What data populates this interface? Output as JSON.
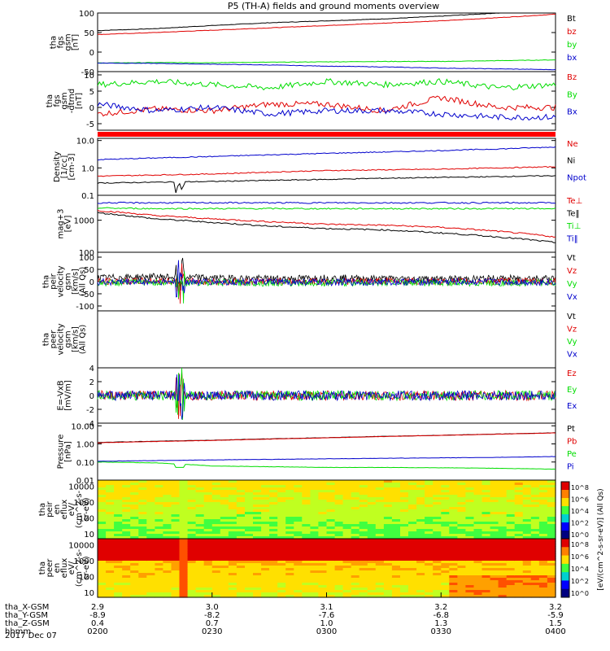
{
  "title": "P5 (TH-A) fields and ground moments overview",
  "date": "2017 Dec 07",
  "colors": {
    "black": "#000000",
    "red": "#e00000",
    "green": "#00dd00",
    "blue": "#0000cc"
  },
  "x_axis": {
    "rows": [
      {
        "label": "tha_X-GSM",
        "values": [
          "2.9",
          "3.0",
          "3.1",
          "3.2",
          "3.2"
        ]
      },
      {
        "label": "tha_Y-GSM",
        "values": [
          "-8.9",
          "-8.2",
          "-7.6",
          "-6.8",
          "-5.9"
        ]
      },
      {
        "label": "tha_Z-GSM",
        "values": [
          "0.4",
          "0.7",
          "1.0",
          "1.3",
          "1.5"
        ]
      },
      {
        "label": "hhmm",
        "values": [
          "0200",
          "0230",
          "0300",
          "0330",
          "0400"
        ]
      }
    ]
  },
  "colorbar": {
    "label": "[eV/(cm^2-s-sr-eV)] (All Qs)",
    "ticks_top": [
      "10^8",
      "10^6",
      "10^4",
      "10^2",
      "10^0"
    ],
    "ticks_bottom": [
      "10^8",
      "10^6",
      "10^4",
      "10^2",
      "10^0"
    ]
  },
  "panels": [
    {
      "id": "fgs",
      "ylabel": [
        "tha",
        "fgs",
        "gsm",
        "[nT]"
      ],
      "type": "line",
      "ylim": [
        -50,
        100
      ],
      "log": false,
      "ticks": [
        "100",
        "50",
        "0",
        "-50"
      ],
      "series": [
        {
          "name": "Bt",
          "color": "black",
          "values": [
            55,
            60,
            68,
            75,
            80,
            85,
            92,
            100,
            104
          ]
        },
        {
          "name": "bz",
          "color": "red",
          "values": [
            45,
            50,
            56,
            62,
            68,
            74,
            80,
            88,
            97
          ]
        },
        {
          "name": "by",
          "color": "green",
          "values": [
            -28,
            -27,
            -27,
            -26,
            -25,
            -24,
            -24,
            -22,
            -20
          ]
        },
        {
          "name": "bx",
          "color": "blue",
          "values": [
            -28,
            -29,
            -31,
            -33,
            -36,
            -38,
            -41,
            -43,
            -45
          ]
        }
      ]
    },
    {
      "id": "fgs-dtrnd",
      "ylabel": [
        "tha",
        "fgs",
        "gsm",
        "-dtrnd",
        "[nT]"
      ],
      "type": "line",
      "ylim": [
        -7,
        11
      ],
      "log": false,
      "ticks": [
        "10",
        "5",
        "0",
        "-5"
      ],
      "series": [
        {
          "name": "Bz",
          "color": "red",
          "values": [
            -2,
            -0.5,
            -1,
            1,
            1,
            -1,
            3,
            0,
            0
          ]
        },
        {
          "name": "By",
          "color": "green",
          "values": [
            7,
            8,
            7,
            6,
            8,
            7,
            8,
            6,
            7
          ]
        },
        {
          "name": "Bx",
          "color": "blue",
          "values": [
            1,
            -1,
            0,
            -2,
            -1,
            -1,
            -2,
            -3,
            -3
          ]
        }
      ]
    },
    {
      "id": "density",
      "ylabel": [
        "Density",
        "[1/cc]",
        "[cm-3]"
      ],
      "type": "line",
      "ylim": [
        0.1,
        12
      ],
      "log": true,
      "ticks": [
        "10.0",
        "1.0",
        "0.1"
      ],
      "series": [
        {
          "name": "Ne",
          "color": "red",
          "values": [
            0.5,
            0.55,
            0.6,
            0.7,
            0.8,
            0.85,
            0.9,
            1.0,
            1.1
          ]
        },
        {
          "name": "Ni",
          "color": "black",
          "values": [
            0.28,
            0.3,
            0.32,
            0.35,
            0.38,
            0.42,
            0.45,
            0.48,
            0.52
          ]
        },
        {
          "name": "Npot",
          "color": "blue",
          "values": [
            2,
            2.3,
            2.6,
            3,
            3.4,
            3.8,
            4.3,
            4.9,
            5.8
          ]
        }
      ]
    },
    {
      "id": "temp",
      "ylabel": [
        "mag+3",
        "[eV]"
      ],
      "type": "line",
      "ylim": [
        100,
        6000
      ],
      "log": true,
      "ticks": [
        "1000",
        "100"
      ],
      "series": [
        {
          "name": "Te⊥",
          "color": "red",
          "values": [
            2000,
            1400,
            1100,
            900,
            750,
            700,
            600,
            450,
            300
          ]
        },
        {
          "name": "Te‖",
          "color": "black",
          "values": [
            1700,
            1100,
            850,
            650,
            550,
            500,
            400,
            300,
            200
          ]
        },
        {
          "name": "Ti⊥",
          "color": "green",
          "values": [
            2400,
            2300,
            2300,
            2300,
            2300,
            2300,
            2300,
            2300,
            2300
          ]
        },
        {
          "name": "Ti‖",
          "color": "blue",
          "values": [
            3500,
            3500,
            3500,
            3500,
            3500,
            3500,
            3500,
            3500,
            3500
          ]
        }
      ]
    },
    {
      "id": "peir-vel",
      "ylabel": [
        "tha",
        "peir",
        "velocity",
        "gsm",
        "[km/s]",
        "(All Qs)"
      ],
      "type": "line",
      "ylim": [
        -120,
        120
      ],
      "log": false,
      "ticks": [
        "100",
        "50",
        "0",
        "-50",
        "-100"
      ],
      "series": [
        {
          "name": "Vt",
          "color": "black",
          "values": [
            15,
            20,
            15,
            12,
            15,
            12,
            10,
            12,
            15
          ]
        },
        {
          "name": "Vz",
          "color": "red",
          "values": [
            0,
            2,
            -1,
            1,
            0,
            2,
            -1,
            1,
            0
          ]
        },
        {
          "name": "Vy",
          "color": "green",
          "values": [
            -5,
            -3,
            -4,
            -6,
            -5,
            -4,
            -5,
            -6,
            -4
          ]
        },
        {
          "name": "Vx",
          "color": "blue",
          "values": [
            -2,
            -1,
            -2,
            -2,
            -3,
            -2,
            -1,
            -2,
            -2
          ]
        }
      ]
    },
    {
      "id": "peer-vel",
      "ylabel": [
        "tha",
        "peer",
        "velocity",
        "gsm",
        "[km/s]",
        "(All Qs)"
      ],
      "type": "empty",
      "ylim": [
        0,
        1
      ],
      "log": false,
      "ticks": [],
      "series": [
        {
          "name": "Vt",
          "color": "black",
          "values": []
        },
        {
          "name": "Vz",
          "color": "red",
          "values": []
        },
        {
          "name": "Vy",
          "color": "green",
          "values": []
        },
        {
          "name": "Vx",
          "color": "blue",
          "values": []
        }
      ]
    },
    {
      "id": "efield",
      "ylabel": [
        "E=-VxB",
        "[mV/m]"
      ],
      "type": "line",
      "ylim": [
        -4,
        4
      ],
      "log": false,
      "ticks": [
        "4",
        "2",
        "0",
        "-2",
        "-4"
      ],
      "series": [
        {
          "name": "Ez",
          "color": "red",
          "values": [
            0,
            0,
            0,
            0,
            0,
            0,
            0,
            0,
            0
          ]
        },
        {
          "name": "Ey",
          "color": "green",
          "values": [
            0,
            0,
            0,
            0,
            0,
            0,
            0,
            0,
            0
          ]
        },
        {
          "name": "Ex",
          "color": "blue",
          "values": [
            0,
            0,
            0,
            0,
            0,
            0,
            0,
            0,
            0
          ]
        }
      ]
    },
    {
      "id": "pressure",
      "ylabel": [
        "Pressure",
        "[nPa]"
      ],
      "type": "line",
      "ylim": [
        0.01,
        14
      ],
      "log": true,
      "ticks": [
        "10.00",
        "1.00",
        "0.10",
        "0.01"
      ],
      "series": [
        {
          "name": "Pt",
          "color": "black",
          "values": [
            1.2,
            1.4,
            1.6,
            1.9,
            2.2,
            2.6,
            3.0,
            3.5,
            4.1
          ]
        },
        {
          "name": "Pb",
          "color": "red",
          "values": [
            1.15,
            1.35,
            1.55,
            1.85,
            2.15,
            2.55,
            2.95,
            3.45,
            4.0
          ]
        },
        {
          "name": "Pe",
          "color": "green",
          "values": [
            0.1,
            0.09,
            0.06,
            0.055,
            0.05,
            0.05,
            0.048,
            0.045,
            0.04
          ]
        },
        {
          "name": "Pi",
          "color": "blue",
          "values": [
            0.11,
            0.12,
            0.13,
            0.14,
            0.15,
            0.16,
            0.17,
            0.18,
            0.2
          ]
        }
      ]
    },
    {
      "id": "peir-eflux",
      "ylabel": [
        "tha",
        "peir",
        "en",
        "eflux",
        "eV/",
        "(cm^2-s-",
        "sr-eV)"
      ],
      "type": "spectrogram",
      "ylim": [
        5,
        25000
      ],
      "log": true,
      "ticks": [
        "10000",
        "1000",
        "100",
        "10"
      ],
      "series": []
    },
    {
      "id": "peer-eflux",
      "ylabel": [
        "tha",
        "peer",
        "en",
        "eflux",
        "eV/",
        "(cm^2-s-",
        "sr-eV)"
      ],
      "type": "spectrogram",
      "ylim": [
        5,
        25000
      ],
      "log": true,
      "ticks": [
        "10000",
        "1000",
        "100",
        "10"
      ],
      "series": []
    }
  ]
}
